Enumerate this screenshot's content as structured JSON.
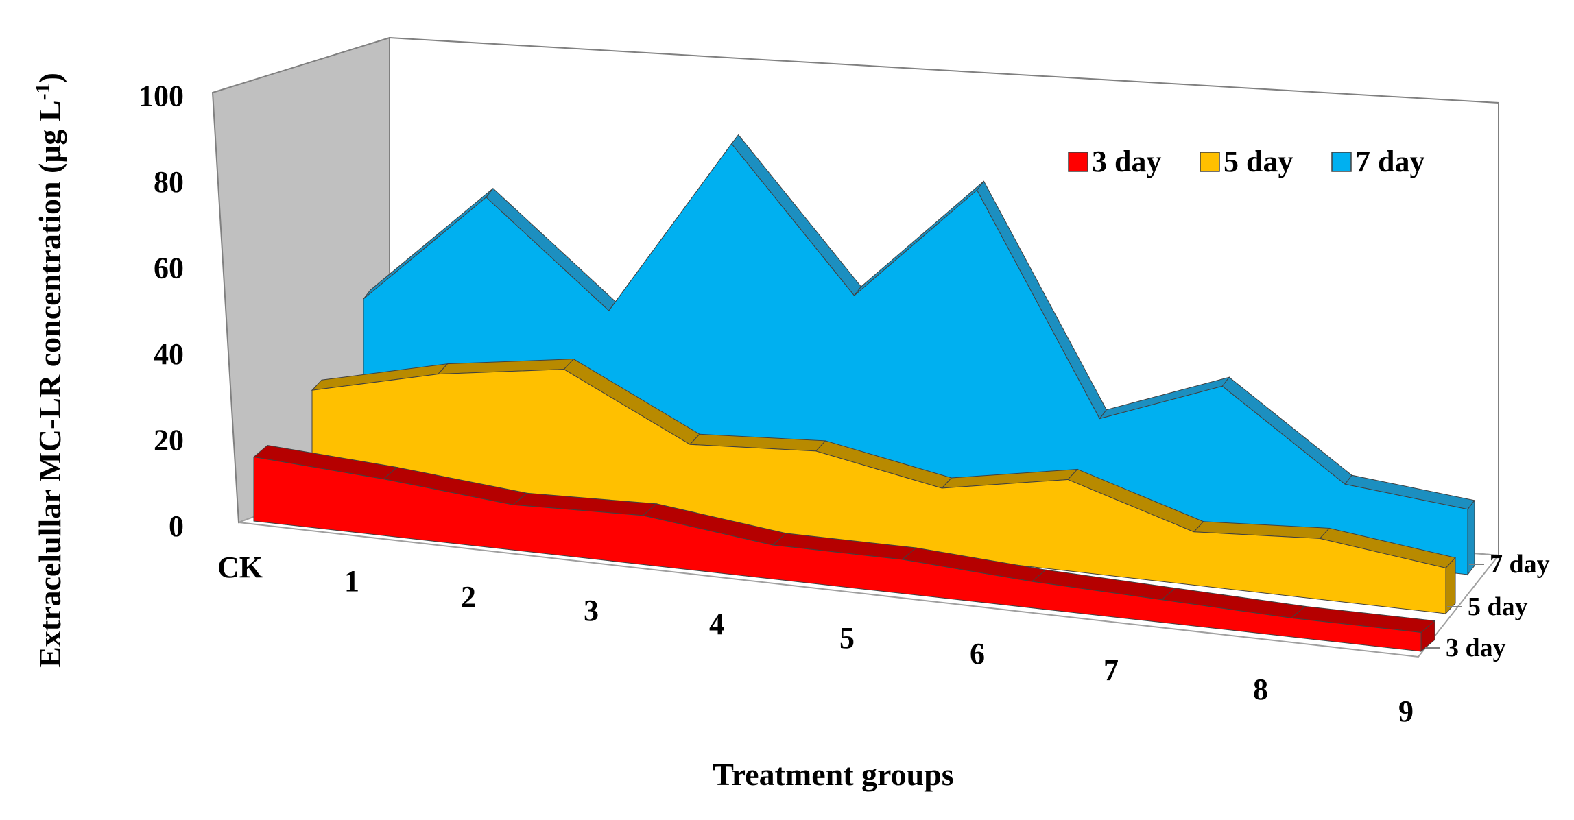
{
  "chart_data": {
    "type": "area",
    "title": "",
    "xlabel": "Treatment groups",
    "ylabel_main": "Extracelullar MC-LR concentration (μg L",
    "ylabel_sup": "-1",
    "ylabel_close": ")",
    "ylim": [
      0,
      100
    ],
    "yticks": [
      "0",
      "20",
      "40",
      "60",
      "80",
      "100"
    ],
    "categories": [
      "CK",
      "1",
      "2",
      "3",
      "4",
      "5",
      "6",
      "7",
      "8",
      "9"
    ],
    "series": [
      {
        "name": "3 day",
        "values": [
          17,
          15,
          12,
          13,
          9,
          9,
          7,
          6,
          5,
          5
        ]
      },
      {
        "name": "5 day",
        "values": [
          25,
          33,
          38,
          22,
          24,
          18,
          24,
          14,
          16,
          12
        ]
      },
      {
        "name": "7 day",
        "values": [
          40,
          70,
          44,
          91,
          55,
          86,
          30,
          42,
          20,
          17
        ]
      }
    ],
    "depth_labels": [
      "3 day",
      "5 day",
      "7 day"
    ],
    "legend_position": "top-right",
    "colors": {
      "3 day": "#ff0000",
      "5 day": "#ffc000",
      "7 day": "#00b0f0",
      "3 day_top": "#b50000",
      "5 day_top": "#b88a00",
      "7 day_top": "#1c8fc0",
      "back_wall": "#c0c0c0"
    },
    "grid": false
  }
}
